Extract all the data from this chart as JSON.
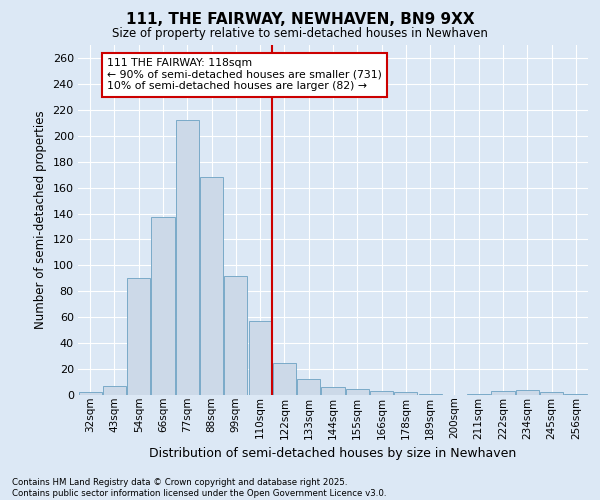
{
  "title": "111, THE FAIRWAY, NEWHAVEN, BN9 9XX",
  "subtitle": "Size of property relative to semi-detached houses in Newhaven",
  "xlabel": "Distribution of semi-detached houses by size in Newhaven",
  "ylabel": "Number of semi-detached properties",
  "footer1": "Contains HM Land Registry data © Crown copyright and database right 2025.",
  "footer2": "Contains public sector information licensed under the Open Government Licence v3.0.",
  "categories": [
    "32sqm",
    "43sqm",
    "54sqm",
    "66sqm",
    "77sqm",
    "88sqm",
    "99sqm",
    "110sqm",
    "122sqm",
    "133sqm",
    "144sqm",
    "155sqm",
    "166sqm",
    "178sqm",
    "189sqm",
    "200sqm",
    "211sqm",
    "222sqm",
    "234sqm",
    "245sqm",
    "256sqm"
  ],
  "values": [
    2,
    7,
    90,
    137,
    212,
    168,
    92,
    57,
    25,
    12,
    6,
    5,
    3,
    2,
    1,
    0,
    1,
    3,
    4,
    2,
    1
  ],
  "bar_color": "#ccd9e8",
  "bar_edge_color": "#7aaac8",
  "vline_x": 7.5,
  "vline_color": "#cc0000",
  "annotation_text": "111 THE FAIRWAY: 118sqm\n← 90% of semi-detached houses are smaller (731)\n10% of semi-detached houses are larger (82) →",
  "annotation_box_color": "#cc0000",
  "ylim": [
    0,
    270
  ],
  "yticks": [
    0,
    20,
    40,
    60,
    80,
    100,
    120,
    140,
    160,
    180,
    200,
    220,
    240,
    260
  ],
  "bg_color": "#dce8f5",
  "plot_bg_color": "#dce8f5",
  "grid_color": "#ffffff"
}
